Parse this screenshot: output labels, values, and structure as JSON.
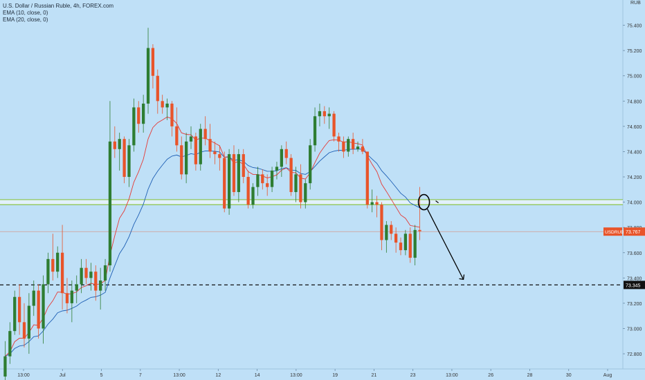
{
  "legend": {
    "title": "U.S. Dollar / Russian Ruble, 4h, FOREX.com",
    "ema10": "EMA (10, close, 0)",
    "ema20": "EMA (20, close, 0)"
  },
  "chart_data": {
    "type": "candlestick",
    "symbol": "USDRUB",
    "currency_label": "RUB",
    "y_axis": {
      "range": [
        72.68,
        75.6
      ],
      "ticks": [
        "75.400",
        "75.200",
        "75.000",
        "74.800",
        "74.600",
        "74.400",
        "74.200",
        "74.000",
        "73.800",
        "73.600",
        "73.400",
        "73.200",
        "73.000",
        "72.800"
      ]
    },
    "x_axis": {
      "ticks": [
        "13:00",
        "Jul",
        "5",
        "7",
        "13:00",
        "12",
        "14",
        "13:00",
        "19",
        "21",
        "23",
        "13:00",
        "26",
        "28",
        "30",
        "Aug"
      ]
    },
    "candles": [
      [
        72.62,
        72.9,
        72.55,
        72.78
      ],
      [
        72.78,
        73.05,
        72.72,
        72.98
      ],
      [
        72.98,
        73.3,
        72.95,
        73.25
      ],
      [
        73.25,
        73.35,
        72.95,
        73.05
      ],
      [
        73.05,
        73.2,
        72.85,
        72.92
      ],
      [
        72.92,
        73.28,
        72.8,
        73.18
      ],
      [
        73.18,
        73.38,
        73.1,
        73.3
      ],
      [
        73.3,
        73.35,
        72.92,
        73.0
      ],
      [
        73.0,
        73.42,
        72.88,
        73.35
      ],
      [
        73.35,
        73.6,
        73.28,
        73.55
      ],
      [
        73.55,
        73.75,
        73.38,
        73.45
      ],
      [
        73.45,
        73.65,
        73.4,
        73.6
      ],
      [
        73.6,
        73.82,
        73.15,
        73.28
      ],
      [
        73.28,
        73.4,
        73.12,
        73.2
      ],
      [
        73.2,
        73.38,
        73.05,
        73.3
      ],
      [
        73.3,
        73.42,
        73.2,
        73.35
      ],
      [
        73.35,
        73.55,
        73.28,
        73.48
      ],
      [
        73.48,
        73.55,
        73.35,
        73.4
      ],
      [
        73.4,
        73.52,
        73.3,
        73.45
      ],
      [
        73.45,
        73.5,
        73.22,
        73.3
      ],
      [
        73.3,
        73.48,
        73.15,
        73.38
      ],
      [
        73.38,
        73.55,
        73.3,
        73.5
      ],
      [
        73.5,
        74.8,
        73.45,
        74.48
      ],
      [
        74.48,
        74.6,
        74.35,
        74.42
      ],
      [
        74.42,
        74.55,
        74.25,
        74.5
      ],
      [
        74.5,
        74.52,
        74.15,
        74.2
      ],
      [
        74.2,
        74.5,
        74.12,
        74.45
      ],
      [
        74.45,
        74.82,
        74.4,
        74.75
      ],
      [
        74.75,
        74.8,
        74.55,
        74.62
      ],
      [
        74.62,
        74.85,
        74.55,
        74.78
      ],
      [
        74.78,
        75.38,
        74.7,
        75.22
      ],
      [
        75.22,
        75.25,
        74.9,
        75.0
      ],
      [
        75.0,
        75.05,
        74.7,
        74.8
      ],
      [
        74.8,
        74.85,
        74.7,
        74.75
      ],
      [
        74.75,
        74.82,
        74.65,
        74.78
      ],
      [
        74.78,
        74.8,
        74.52,
        74.6
      ],
      [
        74.6,
        74.75,
        74.4,
        74.45
      ],
      [
        74.45,
        74.52,
        74.18,
        74.22
      ],
      [
        74.22,
        74.55,
        74.15,
        74.48
      ],
      [
        74.48,
        74.6,
        74.42,
        74.52
      ],
      [
        74.52,
        74.55,
        74.25,
        74.3
      ],
      [
        74.3,
        74.62,
        74.25,
        74.58
      ],
      [
        74.58,
        74.68,
        74.45,
        74.5
      ],
      [
        74.5,
        74.62,
        74.35,
        74.4
      ],
      [
        74.4,
        74.48,
        74.3,
        74.38
      ],
      [
        74.38,
        74.45,
        74.25,
        74.35
      ],
      [
        74.35,
        74.4,
        73.92,
        73.95
      ],
      [
        73.95,
        74.42,
        73.9,
        74.38
      ],
      [
        74.38,
        74.45,
        74.05,
        74.08
      ],
      [
        74.08,
        74.42,
        74.0,
        74.38
      ],
      [
        74.38,
        74.42,
        74.15,
        74.2
      ],
      [
        74.2,
        74.25,
        73.95,
        73.98
      ],
      [
        73.98,
        74.15,
        73.95,
        74.12
      ],
      [
        74.12,
        74.28,
        74.05,
        74.22
      ],
      [
        74.22,
        74.26,
        74.1,
        74.15
      ],
      [
        74.15,
        74.22,
        74.05,
        74.12
      ],
      [
        74.12,
        74.28,
        74.08,
        74.25
      ],
      [
        74.25,
        74.32,
        74.18,
        74.28
      ],
      [
        74.28,
        74.45,
        74.2,
        74.42
      ],
      [
        74.42,
        74.48,
        74.3,
        74.35
      ],
      [
        74.35,
        74.38,
        74.05,
        74.08
      ],
      [
        74.08,
        74.28,
        74.0,
        74.22
      ],
      [
        74.22,
        74.3,
        73.95,
        74.0
      ],
      [
        74.0,
        74.18,
        73.95,
        74.15
      ],
      [
        74.15,
        74.5,
        74.1,
        74.45
      ],
      [
        74.45,
        74.75,
        74.4,
        74.68
      ],
      [
        74.68,
        74.78,
        74.6,
        74.72
      ],
      [
        74.72,
        74.76,
        74.62,
        74.68
      ],
      [
        74.68,
        74.75,
        74.58,
        74.7
      ],
      [
        74.7,
        74.72,
        74.48,
        74.52
      ],
      [
        74.52,
        74.55,
        74.4,
        74.48
      ],
      [
        74.48,
        74.52,
        74.35,
        74.4
      ],
      [
        74.4,
        74.52,
        74.36,
        74.5
      ],
      [
        74.5,
        74.55,
        74.38,
        74.42
      ],
      [
        74.42,
        74.48,
        74.4,
        74.44
      ],
      [
        74.44,
        74.5,
        74.38,
        74.4
      ],
      [
        74.4,
        74.4,
        73.95,
        73.98
      ],
      [
        73.98,
        74.1,
        73.92,
        74.0
      ],
      [
        74.0,
        74.05,
        73.88,
        73.98
      ],
      [
        73.98,
        74.0,
        73.62,
        73.7
      ],
      [
        73.7,
        73.85,
        73.6,
        73.82
      ],
      [
        73.82,
        73.85,
        73.7,
        73.75
      ],
      [
        73.75,
        73.8,
        73.6,
        73.68
      ],
      [
        73.68,
        73.72,
        73.58,
        73.62
      ],
      [
        73.62,
        73.78,
        73.58,
        73.75
      ],
      [
        73.75,
        73.8,
        73.52,
        73.56
      ],
      [
        73.56,
        73.82,
        73.5,
        73.78
      ],
      [
        73.78,
        74.12,
        73.7,
        73.77
      ]
    ],
    "indicators": {
      "ema10_color": "#e53935",
      "ema20_color": "#1e5fb4"
    },
    "levels": {
      "support_zone": [
        73.98,
        74.02
      ],
      "support_zone_color": "#8bc34a",
      "current_price": 73.767,
      "current_price_label": "73.767",
      "target_price": 73.345,
      "target_price_label": "73.345"
    },
    "colors": {
      "up": "#2e7d32",
      "down": "#e8542a",
      "background": "#bfe0f7",
      "price_tag": "#e8542a",
      "target_tag": "#111111"
    }
  }
}
